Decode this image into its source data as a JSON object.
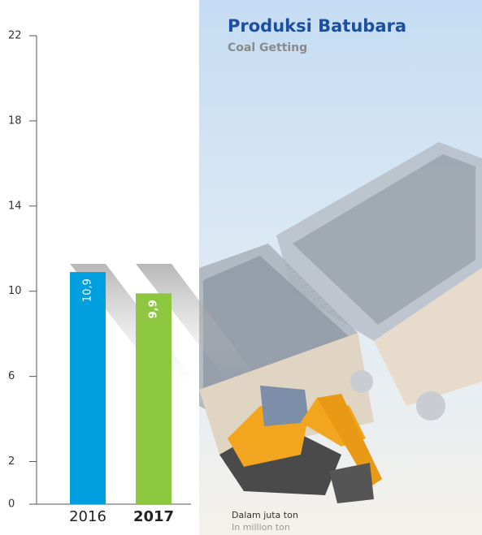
{
  "chart_data": {
    "type": "bar",
    "title": "Produksi Batubara",
    "subtitle": "Coal Getting",
    "categories": [
      "2016",
      "2017"
    ],
    "values": [
      10.9,
      9.9
    ],
    "value_labels": [
      "10,9",
      "9,9"
    ],
    "colors": [
      "#009fdf",
      "#8dc63f"
    ],
    "ylim": [
      0,
      22
    ],
    "yticks": [
      0,
      2,
      6,
      10,
      14,
      18,
      22
    ],
    "note": "Dalam juta ton",
    "note_en": "In million ton"
  }
}
